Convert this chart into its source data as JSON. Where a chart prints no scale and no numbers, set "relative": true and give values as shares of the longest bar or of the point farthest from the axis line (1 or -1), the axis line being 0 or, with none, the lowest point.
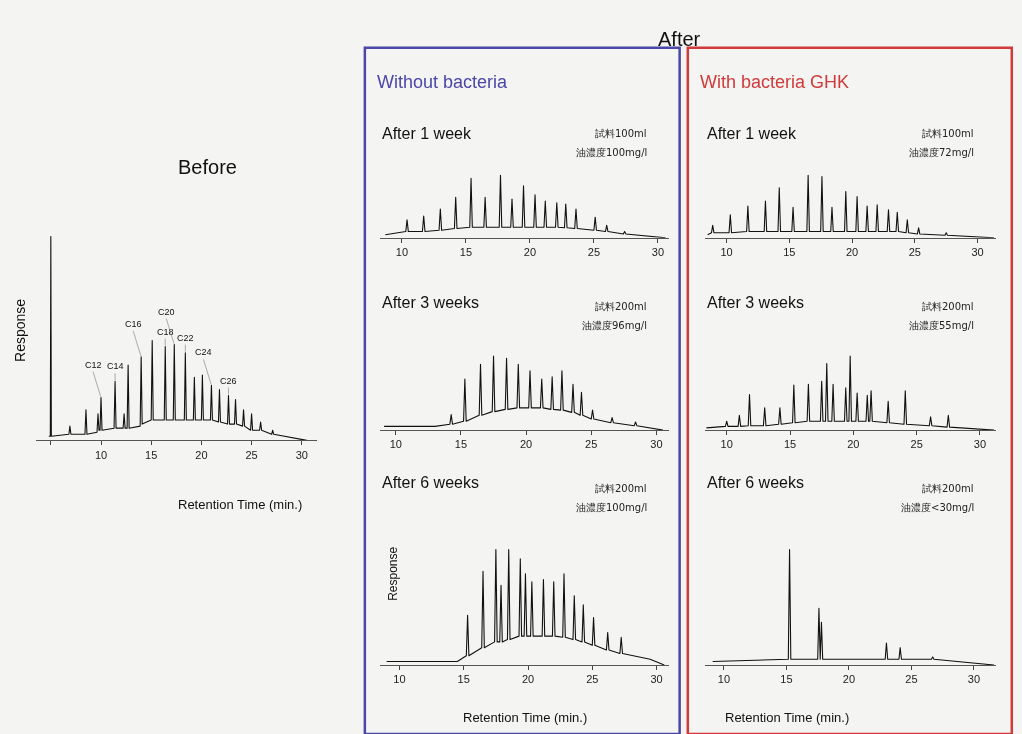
{
  "chart_data": [
    {
      "type": "line",
      "title": "Before",
      "xlabel": "Retention Time (min.)",
      "ylabel": "Response",
      "relative": true,
      "xlim": [
        3.5,
        31.5
      ],
      "xticks": [
        {
          "value": 5,
          "label": null
        },
        10,
        15,
        20,
        25,
        30
      ],
      "x": [
        4.8,
        4.95,
        5.0,
        5.05,
        6.8,
        6.9,
        7.0,
        8.4,
        8.5,
        8.6,
        9.6,
        9.7,
        9.8,
        9.9,
        10.0,
        10.1,
        11.3,
        11.4,
        11.5,
        12.2,
        12.3,
        12.4,
        12.6,
        12.7,
        12.8,
        13.9,
        14.0,
        14.1,
        15.0,
        15.1,
        15.2,
        16.3,
        16.4,
        16.5,
        17.2,
        17.3,
        17.4,
        18.3,
        18.4,
        18.5,
        19.2,
        19.3,
        19.4,
        20.0,
        20.1,
        20.2,
        20.9,
        21.0,
        21.1,
        21.7,
        21.8,
        21.9,
        22.6,
        22.7,
        22.8,
        23.3,
        23.4,
        23.5,
        24.1,
        24.2,
        24.3,
        24.9,
        25.0,
        25.1,
        25.8,
        25.9,
        26.0,
        27.0,
        27.1,
        27.2,
        30.5
      ],
      "series": [
        {
          "color": "#111111",
          "values": [
            0.02,
            0.02,
            1,
            0.02,
            0.03,
            0.07,
            0.03,
            0.03,
            0.15,
            0.03,
            0.04,
            0.13,
            0.05,
            0.05,
            0.21,
            0.05,
            0.06,
            0.29,
            0.06,
            0.06,
            0.13,
            0.06,
            0.06,
            0.37,
            0.06,
            0.07,
            0.41,
            0.08,
            0.1,
            0.49,
            0.1,
            0.1,
            0.46,
            0.1,
            0.1,
            0.47,
            0.1,
            0.1,
            0.43,
            0.1,
            0.1,
            0.31,
            0.1,
            0.1,
            0.32,
            0.1,
            0.1,
            0.27,
            0.1,
            0.09,
            0.25,
            0.09,
            0.08,
            0.22,
            0.08,
            0.08,
            0.2,
            0.08,
            0.07,
            0.15,
            0.07,
            0.05,
            0.13,
            0.05,
            0.05,
            0.09,
            0.05,
            0.03,
            0.05,
            0.03,
            0
          ]
        }
      ],
      "annotations": [
        {
          "text": "C12",
          "x": 10.0,
          "y": 0.21
        },
        {
          "text": "C14",
          "x": 11.4,
          "y": 0.29
        },
        {
          "text": "C16",
          "x": 14.0,
          "y": 0.41
        },
        {
          "text": "C18",
          "x": 16.4,
          "y": 0.46
        },
        {
          "text": "C20",
          "x": 17.3,
          "y": 0.47
        },
        {
          "text": "C22",
          "x": 18.4,
          "y": 0.43
        },
        {
          "text": "C24",
          "x": 21.0,
          "y": 0.27
        },
        {
          "text": "C26",
          "x": 22.7,
          "y": 0.22
        }
      ]
    },
    {
      "type": "line",
      "title": "After 1 week",
      "subtitle": "Without bacteria",
      "relative": true,
      "xlim": [
        8.3,
        30.9
      ],
      "xticks": [
        10,
        15,
        20,
        25,
        30
      ],
      "x": [
        8.7,
        10.3,
        10.4,
        10.5,
        11.6,
        11.7,
        11.8,
        12.9,
        13.0,
        13.1,
        14.1,
        14.2,
        14.3,
        15.3,
        15.4,
        15.5,
        16.4,
        16.5,
        16.6,
        17.6,
        17.7,
        17.8,
        18.5,
        18.6,
        18.7,
        19.4,
        19.5,
        19.6,
        20.3,
        20.4,
        20.5,
        21.1,
        21.2,
        21.3,
        22.0,
        22.1,
        22.2,
        22.7,
        22.8,
        22.9,
        23.5,
        23.6,
        23.7,
        25.0,
        25.1,
        25.2,
        25.9,
        26.0,
        26.1,
        27.3,
        27.4,
        27.5,
        30.6
      ],
      "series": [
        {
          "color": "#111111",
          "values": [
            0.05,
            0.1,
            0.29,
            0.1,
            0.1,
            0.35,
            0.1,
            0.12,
            0.46,
            0.12,
            0.15,
            0.65,
            0.15,
            0.17,
            0.95,
            0.17,
            0.17,
            0.65,
            0.17,
            0.17,
            1,
            0.17,
            0.17,
            0.62,
            0.17,
            0.17,
            0.83,
            0.17,
            0.17,
            0.69,
            0.17,
            0.17,
            0.59,
            0.17,
            0.17,
            0.56,
            0.17,
            0.16,
            0.54,
            0.16,
            0.15,
            0.46,
            0.15,
            0.12,
            0.33,
            0.12,
            0.1,
            0.2,
            0.1,
            0.06,
            0.1,
            0.06,
            0
          ]
        }
      ],
      "annotations": [
        "試料100ml",
        "油濃度100mg/l",
        "After"
      ]
    },
    {
      "type": "line",
      "title": "After 1 week",
      "subtitle": "With bacteria GHK",
      "relative": true,
      "xlim": [
        8.3,
        31.5
      ],
      "xticks": [
        10,
        15,
        20,
        25,
        30
      ],
      "x": [
        8.5,
        8.8,
        8.9,
        9.0,
        10.2,
        10.3,
        10.4,
        11.6,
        11.7,
        11.8,
        13.0,
        13.1,
        13.2,
        14.1,
        14.2,
        14.3,
        15.2,
        15.3,
        15.4,
        16.4,
        16.5,
        16.6,
        17.5,
        17.6,
        17.7,
        18.3,
        18.4,
        18.5,
        19.4,
        19.5,
        19.6,
        20.3,
        20.4,
        20.5,
        21.1,
        21.2,
        21.3,
        21.9,
        22.0,
        22.1,
        22.8,
        22.9,
        23.0,
        23.5,
        23.6,
        23.7,
        24.3,
        24.4,
        24.5,
        25.2,
        25.3,
        25.4,
        27.4,
        27.5,
        27.6,
        31.3
      ],
      "series": [
        {
          "color": "#111111",
          "values": [
            0.05,
            0.08,
            0.2,
            0.08,
            0.08,
            0.37,
            0.08,
            0.1,
            0.51,
            0.1,
            0.1,
            0.59,
            0.1,
            0.1,
            0.8,
            0.1,
            0.1,
            0.49,
            0.1,
            0.1,
            1,
            0.1,
            0.1,
            0.98,
            0.1,
            0.1,
            0.49,
            0.1,
            0.1,
            0.74,
            0.1,
            0.1,
            0.66,
            0.1,
            0.1,
            0.51,
            0.1,
            0.1,
            0.53,
            0.1,
            0.1,
            0.45,
            0.1,
            0.1,
            0.41,
            0.1,
            0.08,
            0.29,
            0.08,
            0.06,
            0.16,
            0.06,
            0.04,
            0.08,
            0.04,
            0
          ]
        }
      ],
      "annotations": [
        "試料100ml",
        "油濃度72mg/l"
      ]
    },
    {
      "type": "line",
      "title": "After 3 weeks",
      "relative": true,
      "xlim": [
        8.8,
        31.0
      ],
      "xticks": [
        10,
        15,
        20,
        25,
        30
      ],
      "x": [
        9.1,
        13.0,
        14.15,
        14.25,
        14.35,
        15.2,
        15.3,
        15.4,
        16.4,
        16.5,
        16.6,
        17.4,
        17.5,
        17.6,
        18.4,
        18.5,
        18.6,
        19.3,
        19.4,
        19.5,
        20.2,
        20.3,
        20.4,
        21.1,
        21.2,
        21.3,
        21.9,
        22.0,
        22.1,
        22.65,
        22.75,
        22.85,
        23.5,
        23.6,
        23.7,
        24.15,
        24.25,
        24.35,
        25.0,
        25.1,
        25.2,
        26.5,
        26.6,
        26.7,
        28.3,
        28.4,
        28.5,
        30.5
      ],
      "series": [
        {
          "color": "#111111",
          "values": [
            0.05,
            0.05,
            0.08,
            0.21,
            0.08,
            0.12,
            0.69,
            0.12,
            0.2,
            0.89,
            0.2,
            0.25,
            1,
            0.25,
            0.28,
            0.97,
            0.28,
            0.3,
            0.89,
            0.3,
            0.3,
            0.8,
            0.3,
            0.3,
            0.69,
            0.3,
            0.28,
            0.72,
            0.28,
            0.27,
            0.8,
            0.27,
            0.24,
            0.62,
            0.24,
            0.2,
            0.51,
            0.2,
            0.15,
            0.27,
            0.15,
            0.1,
            0.17,
            0.1,
            0.06,
            0.11,
            0.06,
            0
          ]
        }
      ],
      "annotations": [
        "試料200ml",
        "油濃度96mg/l"
      ]
    },
    {
      "type": "line",
      "title": "After 3 weeks",
      "relative": true,
      "xlim": [
        8.3,
        31.3
      ],
      "xticks": [
        10,
        15,
        20,
        25,
        30
      ],
      "x": [
        8.4,
        9.9,
        10.0,
        10.1,
        10.9,
        11.0,
        11.1,
        11.7,
        11.8,
        11.9,
        12.9,
        13.0,
        13.1,
        14.1,
        14.2,
        14.3,
        15.2,
        15.3,
        15.4,
        16.35,
        16.45,
        16.55,
        17.4,
        17.5,
        17.6,
        17.8,
        17.9,
        18.0,
        18.3,
        18.4,
        18.5,
        19.3,
        19.4,
        19.5,
        19.65,
        19.75,
        19.85,
        20.2,
        20.3,
        20.4,
        21.0,
        21.1,
        21.2,
        21.3,
        21.4,
        21.5,
        22.65,
        22.75,
        22.85,
        24.0,
        24.1,
        24.2,
        26.0,
        26.1,
        26.2,
        27.4,
        27.5,
        27.6,
        31.1
      ],
      "series": [
        {
          "color": "#111111",
          "values": [
            0.03,
            0.05,
            0.12,
            0.05,
            0.05,
            0.2,
            0.05,
            0.06,
            0.48,
            0.06,
            0.06,
            0.3,
            0.06,
            0.08,
            0.3,
            0.08,
            0.1,
            0.61,
            0.1,
            0.12,
            0.62,
            0.12,
            0.12,
            0.66,
            0.12,
            0.12,
            0.9,
            0.12,
            0.12,
            0.62,
            0.12,
            0.12,
            0.57,
            0.12,
            0.12,
            1,
            0.12,
            0.12,
            0.5,
            0.12,
            0.12,
            0.47,
            0.12,
            0.12,
            0.53,
            0.12,
            0.1,
            0.39,
            0.1,
            0.08,
            0.53,
            0.08,
            0.06,
            0.18,
            0.06,
            0.04,
            0.2,
            0.04,
            0
          ]
        }
      ],
      "annotations": [
        "試料200ml",
        "油濃度55mg/l"
      ]
    },
    {
      "type": "line",
      "title": "After 6 weeks",
      "xlabel": "Retention Time (min.)",
      "ylabel": "Response",
      "relative": true,
      "xlim": [
        8.5,
        31.0
      ],
      "xticks": [
        10,
        15,
        20,
        25,
        30
      ],
      "x": [
        9.0,
        14.5,
        15.2,
        15.3,
        15.4,
        16.4,
        16.5,
        16.6,
        17.4,
        17.5,
        17.6,
        17.8,
        17.9,
        18.0,
        18.4,
        18.5,
        18.6,
        19.3,
        19.4,
        19.5,
        19.7,
        19.8,
        19.9,
        20.2,
        20.3,
        20.4,
        21.1,
        21.2,
        21.3,
        21.9,
        22.0,
        22.1,
        22.7,
        22.8,
        22.9,
        23.5,
        23.6,
        23.7,
        24.2,
        24.3,
        24.4,
        25.0,
        25.1,
        25.2,
        26.1,
        26.2,
        26.3,
        27.15,
        27.25,
        27.35,
        29.5,
        30.6
      ],
      "series": [
        {
          "color": "#111111",
          "values": [
            0.03,
            0.03,
            0.08,
            0.43,
            0.08,
            0.15,
            0.81,
            0.15,
            0.2,
            1,
            0.2,
            0.2,
            0.69,
            0.2,
            0.22,
            1,
            0.22,
            0.25,
            0.92,
            0.25,
            0.25,
            0.79,
            0.25,
            0.25,
            0.72,
            0.25,
            0.25,
            0.74,
            0.25,
            0.25,
            0.72,
            0.25,
            0.24,
            0.79,
            0.24,
            0.22,
            0.6,
            0.22,
            0.2,
            0.52,
            0.2,
            0.17,
            0.41,
            0.17,
            0.13,
            0.28,
            0.13,
            0.1,
            0.24,
            0.1,
            0.05,
            0
          ]
        }
      ],
      "annotations": [
        "試料200ml",
        "油濃度100mg/l"
      ]
    },
    {
      "type": "line",
      "title": "After 6 weeks",
      "xlabel": "Retention Time (min.)",
      "relative": true,
      "xlim": [
        8.5,
        31.8
      ],
      "xticks": [
        10,
        15,
        20,
        25,
        30
      ],
      "x": [
        9.1,
        15.15,
        15.25,
        15.35,
        17.5,
        17.6,
        17.7,
        17.8,
        17.9,
        22.9,
        23.0,
        23.1,
        24.0,
        24.1,
        24.2,
        26.6,
        26.7,
        26.8,
        31.6
      ],
      "series": [
        {
          "color": "#111111",
          "values": [
            0.03,
            0.05,
            1,
            0.05,
            0.05,
            0.49,
            0.05,
            0.37,
            0.05,
            0.05,
            0.19,
            0.05,
            0.05,
            0.15,
            0.05,
            0.05,
            0.07,
            0.05,
            0
          ]
        }
      ],
      "annotations": [
        "試料200ml",
        "油濃度<30mg/l"
      ]
    }
  ]
}
